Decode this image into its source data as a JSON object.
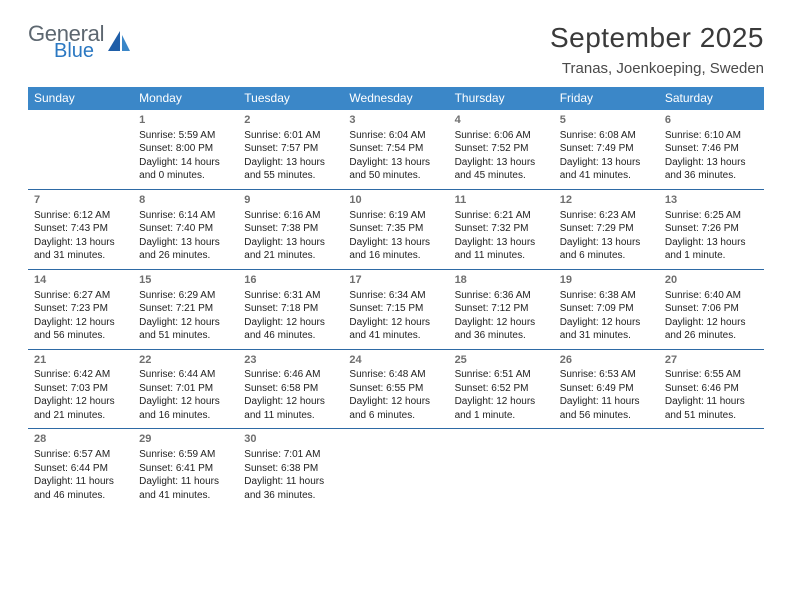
{
  "logo": {
    "textTop": "General",
    "textBottom": "Blue",
    "grayColor": "#5d6770",
    "blueColor": "#2b78c2"
  },
  "monthTitle": "September 2025",
  "location": "Tranas, Joenkoeping, Sweden",
  "colors": {
    "headerBg": "#3b87c8",
    "headerText": "#ffffff",
    "weekBorder": "#2e6aa5",
    "dayNum": "#6f6f6f",
    "infoText": "#222222",
    "pageBg": "#ffffff"
  },
  "typography": {
    "monthTitleSize": 28,
    "locationSize": 15,
    "dowSize": 12,
    "dayNumSize": 11,
    "infoSize": 10
  },
  "dow": [
    "Sunday",
    "Monday",
    "Tuesday",
    "Wednesday",
    "Thursday",
    "Friday",
    "Saturday"
  ],
  "weeks": [
    [
      {
        "n": "",
        "sunrise": "",
        "sunset": "",
        "daylight": ""
      },
      {
        "n": "1",
        "sunrise": "Sunrise: 5:59 AM",
        "sunset": "Sunset: 8:00 PM",
        "daylight": "Daylight: 14 hours and 0 minutes."
      },
      {
        "n": "2",
        "sunrise": "Sunrise: 6:01 AM",
        "sunset": "Sunset: 7:57 PM",
        "daylight": "Daylight: 13 hours and 55 minutes."
      },
      {
        "n": "3",
        "sunrise": "Sunrise: 6:04 AM",
        "sunset": "Sunset: 7:54 PM",
        "daylight": "Daylight: 13 hours and 50 minutes."
      },
      {
        "n": "4",
        "sunrise": "Sunrise: 6:06 AM",
        "sunset": "Sunset: 7:52 PM",
        "daylight": "Daylight: 13 hours and 45 minutes."
      },
      {
        "n": "5",
        "sunrise": "Sunrise: 6:08 AM",
        "sunset": "Sunset: 7:49 PM",
        "daylight": "Daylight: 13 hours and 41 minutes."
      },
      {
        "n": "6",
        "sunrise": "Sunrise: 6:10 AM",
        "sunset": "Sunset: 7:46 PM",
        "daylight": "Daylight: 13 hours and 36 minutes."
      }
    ],
    [
      {
        "n": "7",
        "sunrise": "Sunrise: 6:12 AM",
        "sunset": "Sunset: 7:43 PM",
        "daylight": "Daylight: 13 hours and 31 minutes."
      },
      {
        "n": "8",
        "sunrise": "Sunrise: 6:14 AM",
        "sunset": "Sunset: 7:40 PM",
        "daylight": "Daylight: 13 hours and 26 minutes."
      },
      {
        "n": "9",
        "sunrise": "Sunrise: 6:16 AM",
        "sunset": "Sunset: 7:38 PM",
        "daylight": "Daylight: 13 hours and 21 minutes."
      },
      {
        "n": "10",
        "sunrise": "Sunrise: 6:19 AM",
        "sunset": "Sunset: 7:35 PM",
        "daylight": "Daylight: 13 hours and 16 minutes."
      },
      {
        "n": "11",
        "sunrise": "Sunrise: 6:21 AM",
        "sunset": "Sunset: 7:32 PM",
        "daylight": "Daylight: 13 hours and 11 minutes."
      },
      {
        "n": "12",
        "sunrise": "Sunrise: 6:23 AM",
        "sunset": "Sunset: 7:29 PM",
        "daylight": "Daylight: 13 hours and 6 minutes."
      },
      {
        "n": "13",
        "sunrise": "Sunrise: 6:25 AM",
        "sunset": "Sunset: 7:26 PM",
        "daylight": "Daylight: 13 hours and 1 minute."
      }
    ],
    [
      {
        "n": "14",
        "sunrise": "Sunrise: 6:27 AM",
        "sunset": "Sunset: 7:23 PM",
        "daylight": "Daylight: 12 hours and 56 minutes."
      },
      {
        "n": "15",
        "sunrise": "Sunrise: 6:29 AM",
        "sunset": "Sunset: 7:21 PM",
        "daylight": "Daylight: 12 hours and 51 minutes."
      },
      {
        "n": "16",
        "sunrise": "Sunrise: 6:31 AM",
        "sunset": "Sunset: 7:18 PM",
        "daylight": "Daylight: 12 hours and 46 minutes."
      },
      {
        "n": "17",
        "sunrise": "Sunrise: 6:34 AM",
        "sunset": "Sunset: 7:15 PM",
        "daylight": "Daylight: 12 hours and 41 minutes."
      },
      {
        "n": "18",
        "sunrise": "Sunrise: 6:36 AM",
        "sunset": "Sunset: 7:12 PM",
        "daylight": "Daylight: 12 hours and 36 minutes."
      },
      {
        "n": "19",
        "sunrise": "Sunrise: 6:38 AM",
        "sunset": "Sunset: 7:09 PM",
        "daylight": "Daylight: 12 hours and 31 minutes."
      },
      {
        "n": "20",
        "sunrise": "Sunrise: 6:40 AM",
        "sunset": "Sunset: 7:06 PM",
        "daylight": "Daylight: 12 hours and 26 minutes."
      }
    ],
    [
      {
        "n": "21",
        "sunrise": "Sunrise: 6:42 AM",
        "sunset": "Sunset: 7:03 PM",
        "daylight": "Daylight: 12 hours and 21 minutes."
      },
      {
        "n": "22",
        "sunrise": "Sunrise: 6:44 AM",
        "sunset": "Sunset: 7:01 PM",
        "daylight": "Daylight: 12 hours and 16 minutes."
      },
      {
        "n": "23",
        "sunrise": "Sunrise: 6:46 AM",
        "sunset": "Sunset: 6:58 PM",
        "daylight": "Daylight: 12 hours and 11 minutes."
      },
      {
        "n": "24",
        "sunrise": "Sunrise: 6:48 AM",
        "sunset": "Sunset: 6:55 PM",
        "daylight": "Daylight: 12 hours and 6 minutes."
      },
      {
        "n": "25",
        "sunrise": "Sunrise: 6:51 AM",
        "sunset": "Sunset: 6:52 PM",
        "daylight": "Daylight: 12 hours and 1 minute."
      },
      {
        "n": "26",
        "sunrise": "Sunrise: 6:53 AM",
        "sunset": "Sunset: 6:49 PM",
        "daylight": "Daylight: 11 hours and 56 minutes."
      },
      {
        "n": "27",
        "sunrise": "Sunrise: 6:55 AM",
        "sunset": "Sunset: 6:46 PM",
        "daylight": "Daylight: 11 hours and 51 minutes."
      }
    ],
    [
      {
        "n": "28",
        "sunrise": "Sunrise: 6:57 AM",
        "sunset": "Sunset: 6:44 PM",
        "daylight": "Daylight: 11 hours and 46 minutes."
      },
      {
        "n": "29",
        "sunrise": "Sunrise: 6:59 AM",
        "sunset": "Sunset: 6:41 PM",
        "daylight": "Daylight: 11 hours and 41 minutes."
      },
      {
        "n": "30",
        "sunrise": "Sunrise: 7:01 AM",
        "sunset": "Sunset: 6:38 PM",
        "daylight": "Daylight: 11 hours and 36 minutes."
      },
      {
        "n": "",
        "sunrise": "",
        "sunset": "",
        "daylight": ""
      },
      {
        "n": "",
        "sunrise": "",
        "sunset": "",
        "daylight": ""
      },
      {
        "n": "",
        "sunrise": "",
        "sunset": "",
        "daylight": ""
      },
      {
        "n": "",
        "sunrise": "",
        "sunset": "",
        "daylight": ""
      }
    ]
  ]
}
